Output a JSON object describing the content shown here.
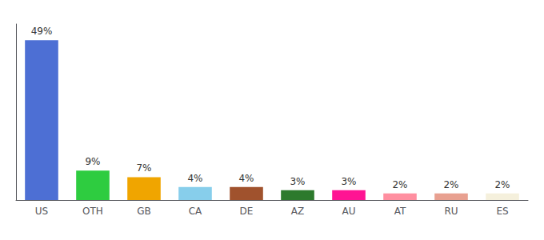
{
  "chart_data": {
    "type": "bar",
    "categories": [
      "US",
      "OTH",
      "GB",
      "CA",
      "DE",
      "AZ",
      "AU",
      "AT",
      "RU",
      "ES"
    ],
    "values": [
      49,
      9,
      7,
      4,
      4,
      3,
      3,
      2,
      2,
      2
    ],
    "value_labels": [
      "49%",
      "9%",
      "7%",
      "4%",
      "4%",
      "3%",
      "3%",
      "2%",
      "2%",
      "2%"
    ],
    "colors": [
      "#4d6fd4",
      "#2ecc40",
      "#f0a500",
      "#87ceeb",
      "#a0522d",
      "#2d7a2d",
      "#ff1493",
      "#ff8fa0",
      "#e8a090",
      "#f5f0dc"
    ],
    "ylim": [
      0,
      54
    ],
    "data_labels": true,
    "tick_labels": "x",
    "grid": false
  }
}
